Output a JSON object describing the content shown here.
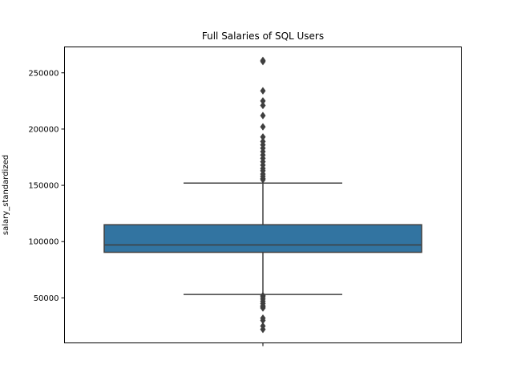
{
  "chart_data": {
    "type": "box",
    "title": "Full Salaries of SQL Users",
    "xlabel": "",
    "ylabel": "salary_standardized",
    "ylim": [
      10000,
      273000
    ],
    "yticks": [
      50000,
      100000,
      150000,
      200000,
      250000
    ],
    "ytick_labels": [
      "50000",
      "100000",
      "150000",
      "200000",
      "250000"
    ],
    "box": {
      "q1": 90500,
      "median": 97000,
      "q3": 115000,
      "whisker_low": 53000,
      "whisker_high": 152000
    },
    "outliers_high": [
      155000,
      156000,
      158000,
      160000,
      163000,
      165000,
      168000,
      171000,
      174000,
      177000,
      180000,
      183000,
      186000,
      189000,
      193000,
      202000,
      212000,
      221000,
      225000,
      234000,
      260000,
      261000
    ],
    "outliers_low": [
      22000,
      25000,
      30000,
      32000,
      41000,
      42000,
      43000,
      45000,
      47000,
      49000,
      51000,
      52000
    ],
    "box_color": "#3274a1",
    "line_color": "#3f3f3f",
    "grid": false
  }
}
